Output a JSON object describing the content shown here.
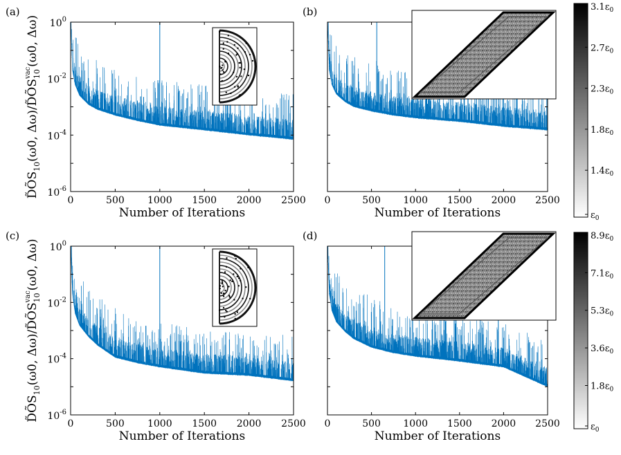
{
  "chart_data": [
    {
      "panel": "(a)",
      "type": "line",
      "xlabel": "Number of Iterations",
      "ylabel": "D̃ÕS10(ω0, Δω)/D̃ÕS10vac(ω0, Δω)",
      "ylabel_parts": {
        "ratio_part": "D̃ÕS",
        "sub": "10",
        "args": "(ω0, Δω)/",
        "denom": "D̃ÕS",
        "sup": "vac",
        "denom_args": "(ω0, Δω)"
      },
      "xlim": [
        0,
        2500
      ],
      "ylim_log10": [
        -6,
        0
      ],
      "yscale": "log",
      "xticks": [
        "0",
        "500",
        "1000",
        "1500",
        "2000",
        "2500"
      ],
      "yticks": [
        {
          "base": "10",
          "exp": "0"
        },
        {
          "base": "10",
          "exp": "-2"
        },
        {
          "base": "10",
          "exp": "-4"
        },
        {
          "base": "10",
          "exp": "-6"
        }
      ],
      "series": [
        {
          "name": "DOS ratio",
          "color": "#0072BD",
          "baseline": [
            [
              0,
              1.0
            ],
            [
              20,
              0.02
            ],
            [
              50,
              0.006
            ],
            [
              100,
              0.0025
            ],
            [
              200,
              0.0012
            ],
            [
              300,
              0.0008
            ],
            [
              500,
              0.0005
            ],
            [
              750,
              0.00032
            ],
            [
              1000,
              0.00022
            ],
            [
              1500,
              0.00015
            ],
            [
              2000,
              0.0001
            ],
            [
              2500,
              7e-05
            ]
          ],
          "spikes": [
            [
              1000,
              1.0
            ],
            [
              1735,
              0.004
            ],
            [
              1755,
              0.006
            ]
          ]
        }
      ],
      "inset": "half-disc (semicircle) permittivity design"
    },
    {
      "panel": "(b)",
      "type": "line",
      "xlabel": "Number of Iterations",
      "xlim": [
        0,
        2500
      ],
      "ylim_log10": [
        -6,
        0
      ],
      "yscale": "log",
      "xticks": [
        "0",
        "500",
        "1000",
        "1500",
        "2000",
        "2500"
      ],
      "series": [
        {
          "name": "DOS ratio",
          "color": "#0072BD",
          "baseline": [
            [
              0,
              1.0
            ],
            [
              20,
              0.02
            ],
            [
              50,
              0.006
            ],
            [
              100,
              0.0028
            ],
            [
              200,
              0.0015
            ],
            [
              300,
              0.001
            ],
            [
              500,
              0.0007
            ],
            [
              750,
              0.0005
            ],
            [
              1000,
              0.0004
            ],
            [
              1500,
              0.0003
            ],
            [
              2000,
              0.0002
            ],
            [
              2500,
              0.00015
            ]
          ],
          "spikes": [
            [
              560,
              1.0
            ]
          ]
        }
      ],
      "inset": "parallelogram permittivity design"
    },
    {
      "panel": "(c)",
      "type": "line",
      "xlabel": "Number of Iterations",
      "ylabel": "D̃ÕS10(ω0, Δω)/D̃ÕS10vac(ω0, Δω)",
      "xlim": [
        0,
        2500
      ],
      "ylim_log10": [
        -6,
        0
      ],
      "yscale": "log",
      "xticks": [
        "0",
        "500",
        "1000",
        "1500",
        "2000",
        "2500"
      ],
      "yticks": [
        {
          "base": "10",
          "exp": "0"
        },
        {
          "base": "10",
          "exp": "-2"
        },
        {
          "base": "10",
          "exp": "-4"
        },
        {
          "base": "10",
          "exp": "-6"
        }
      ],
      "series": [
        {
          "name": "DOS ratio",
          "color": "#0072BD",
          "baseline": [
            [
              0,
              1.0
            ],
            [
              20,
              0.02
            ],
            [
              50,
              0.004
            ],
            [
              100,
              0.0015
            ],
            [
              200,
              0.0006
            ],
            [
              300,
              0.0003
            ],
            [
              500,
              0.00011
            ],
            [
              750,
              7e-05
            ],
            [
              1000,
              5e-05
            ],
            [
              1500,
              3e-05
            ],
            [
              2000,
              2.5e-05
            ],
            [
              2500,
              1.6e-05
            ]
          ],
          "spikes": [
            [
              1000,
              1.0
            ]
          ]
        }
      ],
      "inset": "half-disc (semicircle) permittivity design"
    },
    {
      "panel": "(d)",
      "type": "line",
      "xlabel": "Number of Iterations",
      "xlim": [
        0,
        2500
      ],
      "ylim_log10": [
        -6,
        0
      ],
      "yscale": "log",
      "xticks": [
        "0",
        "500",
        "1000",
        "1500",
        "2000",
        "2500"
      ],
      "series": [
        {
          "name": "DOS ratio",
          "color": "#0072BD",
          "baseline": [
            [
              0,
              1.0
            ],
            [
              20,
              0.02
            ],
            [
              50,
              0.005
            ],
            [
              100,
              0.002
            ],
            [
              200,
              0.0009
            ],
            [
              300,
              0.0005
            ],
            [
              500,
              0.00025
            ],
            [
              750,
              0.00016
            ],
            [
              1000,
              0.00012
            ],
            [
              1500,
              8e-05
            ],
            [
              2000,
              5e-05
            ],
            [
              2500,
              1e-05
            ]
          ],
          "spikes": [
            [
              650,
              1.0
            ],
            [
              1940,
              0.003
            ]
          ]
        }
      ],
      "inset": "parallelogram permittivity design"
    }
  ],
  "colorbars": [
    {
      "name": "top",
      "colormap": "gray-reversed",
      "ticks": [
        {
          "value": "3.1",
          "unit": "ε0"
        },
        {
          "value": "2.7",
          "unit": "ε0"
        },
        {
          "value": "2.3",
          "unit": "ε0"
        },
        {
          "value": "1.8",
          "unit": "ε0"
        },
        {
          "value": "1.4",
          "unit": "ε0"
        },
        {
          "value": "",
          "unit": "ε0"
        }
      ]
    },
    {
      "name": "bottom",
      "colormap": "gray-reversed",
      "ticks": [
        {
          "value": "8.9",
          "unit": "ε0"
        },
        {
          "value": "7.1",
          "unit": "ε0"
        },
        {
          "value": "5.3",
          "unit": "ε0"
        },
        {
          "value": "3.6",
          "unit": "ε0"
        },
        {
          "value": "1.8",
          "unit": "ε0"
        },
        {
          "value": "",
          "unit": "ε0"
        }
      ]
    }
  ]
}
